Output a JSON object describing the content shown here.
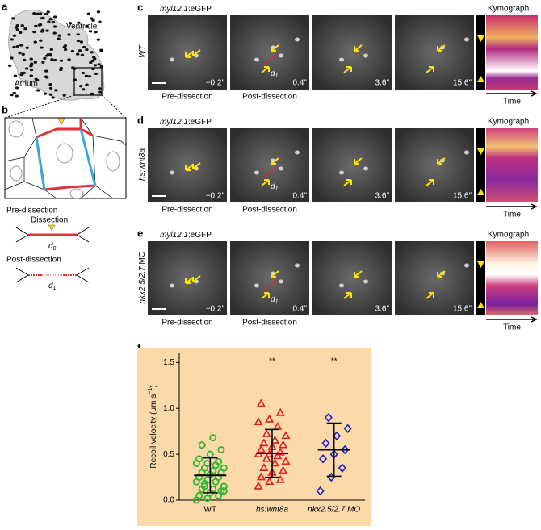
{
  "panel_a": {
    "label": "a",
    "ventricle": "Ventricle",
    "atrium": "Atrium"
  },
  "panel_b": {
    "label": "b",
    "pre": "Pre-dissection",
    "dissection": "Dissection",
    "d0": "d",
    "d0_sub": "0",
    "post": "Post-dissection",
    "d1": "d",
    "d1_sub": "1"
  },
  "rows": [
    {
      "label": "c",
      "gene": "myl12.1",
      "reporter": ":eGFP",
      "condition": "WT",
      "condition_suffix": "",
      "times": [
        "−0.2″",
        "0.4″",
        "3.6″",
        "15.6″"
      ],
      "pre": "Pre-dissection",
      "post": "Post-dissection",
      "d": "d",
      "d_sub": "1",
      "kymograph": "Kymograph",
      "time_axis": "Time"
    },
    {
      "label": "d",
      "gene": "myl12.1",
      "reporter": ":eGFP",
      "condition": "hs:wnt8a",
      "condition_suffix": "",
      "times": [
        "−0.2″",
        "0.4″",
        "3.6″",
        "15.6″"
      ],
      "pre": "Pre-dissection",
      "post": "Post-dissection",
      "d": "d",
      "d_sub": "1",
      "kymograph": "Kymograph",
      "time_axis": "Time"
    },
    {
      "label": "e",
      "gene": "myl12.1",
      "reporter": ":eGFP",
      "condition": "nkx2.5/2.7",
      "condition_suffix": " MO",
      "times": [
        "−0.2″",
        "0.4″",
        "3.6″",
        "15.6″"
      ],
      "pre": "Pre-dissection",
      "post": "Post-dissection",
      "d": "d",
      "d_sub": "1",
      "kymograph": "Kymograph",
      "time_axis": "Time"
    }
  ],
  "chart_data": {
    "type": "strip",
    "label": "f",
    "ylabel": "Recoil velocity (μm s",
    "ylabel_sup": "−1",
    "ylabel_end": ")",
    "categories": [
      "WT",
      "hs:wnt8a",
      "nkx2.5/2.7 MO"
    ],
    "ylim": [
      0,
      1.6
    ],
    "yticks": [
      {
        "value": 0,
        "label": "0.0"
      },
      0.5,
      {
        "value": 1,
        "label": "1.0"
      },
      1.5
    ],
    "background": "#fbd9a9",
    "groups": [
      {
        "color": "#2fb52f",
        "marker": "circle",
        "mean": 0.27,
        "error": 0.19,
        "values": [
          0.0,
          0.02,
          0.05,
          0.05,
          0.08,
          0.1,
          0.12,
          0.12,
          0.15,
          0.18,
          0.2,
          0.2,
          0.22,
          0.25,
          0.25,
          0.28,
          0.3,
          0.3,
          0.32,
          0.35,
          0.35,
          0.38,
          0.4,
          0.4,
          0.42,
          0.45,
          0.5,
          0.55,
          0.6,
          0.68,
          0.1,
          0.15
        ]
      },
      {
        "color": "#e02020",
        "marker": "triangle",
        "mean": 0.51,
        "error": 0.26,
        "annotation": "**",
        "values": [
          0.15,
          0.2,
          0.22,
          0.25,
          0.3,
          0.32,
          0.35,
          0.4,
          0.42,
          0.45,
          0.48,
          0.5,
          0.5,
          0.52,
          0.55,
          0.58,
          0.6,
          0.62,
          0.65,
          0.7,
          0.72,
          0.8,
          0.85,
          0.88,
          0.95,
          1.05,
          0.3
        ]
      },
      {
        "color": "#1c1cc8",
        "marker": "diamond",
        "mean": 0.55,
        "error": 0.29,
        "annotation": "**",
        "values": [
          0.1,
          0.25,
          0.35,
          0.45,
          0.5,
          0.55,
          0.62,
          0.7,
          0.78,
          0.9
        ]
      }
    ]
  }
}
